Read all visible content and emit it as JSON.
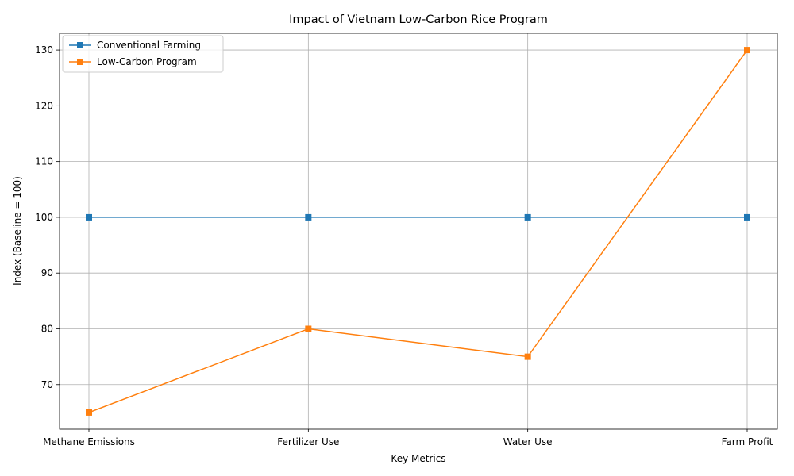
{
  "chart_data": {
    "type": "line",
    "title": "Impact of Vietnam Low-Carbon Rice Program",
    "xlabel": "Key Metrics",
    "ylabel": "Index (Baseline = 100)",
    "categories": [
      "Methane Emissions",
      "Fertilizer Use",
      "Water Use",
      "Farm Profit"
    ],
    "yticks": [
      70,
      80,
      90,
      100,
      110,
      120,
      130
    ],
    "ylim": [
      62,
      133
    ],
    "grid": true,
    "legend_position": "top-left",
    "series": [
      {
        "name": "Conventional Farming",
        "values": [
          100,
          100,
          100,
          100
        ],
        "color": "#1f77b4",
        "marker": "square"
      },
      {
        "name": "Low-Carbon Program",
        "values": [
          65,
          80,
          75,
          130
        ],
        "color": "#ff7f0e",
        "marker": "square"
      }
    ]
  }
}
